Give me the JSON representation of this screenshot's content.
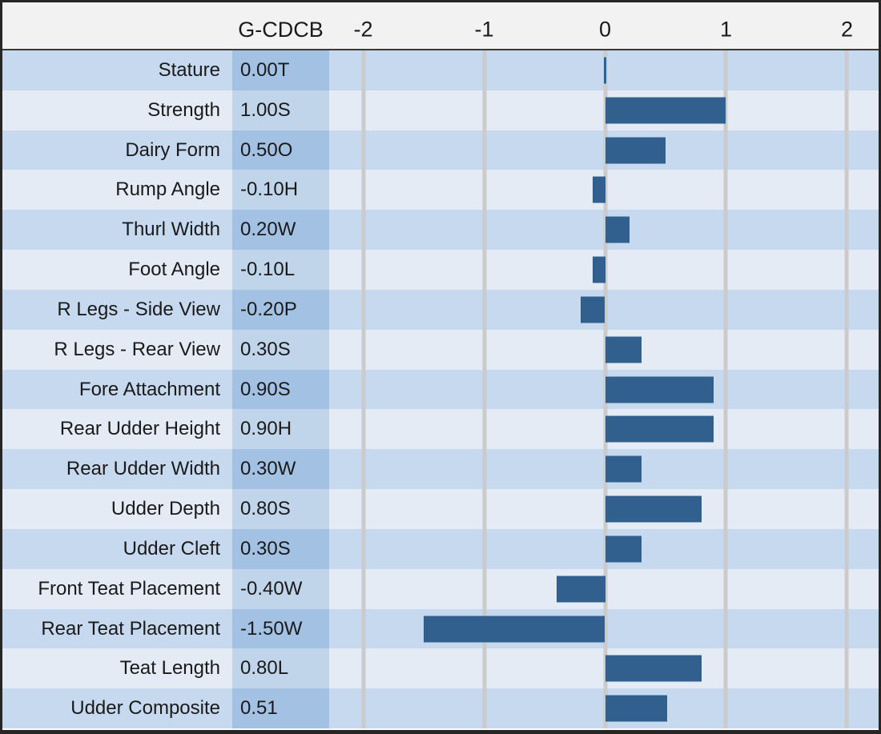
{
  "header": {
    "value_col_label": "G-CDCB"
  },
  "colors": {
    "border": "#262626",
    "header-bg": "#f2f2f2",
    "header-line": "#3a3a3a",
    "row-dark": "#c6d9ee",
    "row-light": "#e4ebf5",
    "value-dark": "#a3c1e2",
    "value-light": "#c0d4ea",
    "gridline": "#cbcbcb",
    "bar": "#31608f",
    "text": "#1a1a1a"
  },
  "chart_data": {
    "type": "bar",
    "orientation": "horizontal",
    "title": "",
    "column_header": "G-CDCB",
    "axis_ticks": [
      -2,
      -1,
      0,
      1,
      2
    ],
    "xlim": [
      -2.3,
      2.3
    ],
    "grid": true,
    "legend": false,
    "bar_color": "#31608f",
    "categories": [
      "Stature",
      "Strength",
      "Dairy Form",
      "Rump Angle",
      "Thurl Width",
      "Foot Angle",
      "R Legs - Side View",
      "R Legs - Rear View",
      "Fore Attachment",
      "Rear Udder Height",
      "Rear Udder Width",
      "Udder Depth",
      "Udder Cleft",
      "Front Teat Placement",
      "Rear Teat Placement",
      "Teat Length",
      "Udder Composite"
    ],
    "values": [
      0.0,
      1.0,
      0.5,
      -0.1,
      0.2,
      -0.1,
      -0.2,
      0.3,
      0.9,
      0.9,
      0.3,
      0.8,
      0.3,
      -0.4,
      -1.5,
      0.8,
      0.51
    ],
    "rows": [
      {
        "trait": "Stature",
        "label": "0.00T",
        "value": 0.0
      },
      {
        "trait": "Strength",
        "label": "1.00S",
        "value": 1.0
      },
      {
        "trait": "Dairy Form",
        "label": "0.50O",
        "value": 0.5
      },
      {
        "trait": "Rump Angle",
        "label": "-0.10H",
        "value": -0.1
      },
      {
        "trait": "Thurl Width",
        "label": "0.20W",
        "value": 0.2
      },
      {
        "trait": "Foot Angle",
        "label": "-0.10L",
        "value": -0.1
      },
      {
        "trait": "R Legs - Side View",
        "label": "-0.20P",
        "value": -0.2
      },
      {
        "trait": "R Legs - Rear View",
        "label": "0.30S",
        "value": 0.3
      },
      {
        "trait": "Fore Attachment",
        "label": "0.90S",
        "value": 0.9
      },
      {
        "trait": "Rear Udder Height",
        "label": "0.90H",
        "value": 0.9
      },
      {
        "trait": "Rear Udder Width",
        "label": "0.30W",
        "value": 0.3
      },
      {
        "trait": "Udder Depth",
        "label": "0.80S",
        "value": 0.8
      },
      {
        "trait": "Udder Cleft",
        "label": "0.30S",
        "value": 0.3
      },
      {
        "trait": "Front Teat Placement",
        "label": "-0.40W",
        "value": -0.4
      },
      {
        "trait": "Rear Teat Placement",
        "label": "-1.50W",
        "value": -1.5
      },
      {
        "trait": "Teat Length",
        "label": "0.80L",
        "value": 0.8
      },
      {
        "trait": "Udder Composite",
        "label": "0.51",
        "value": 0.51
      }
    ]
  }
}
